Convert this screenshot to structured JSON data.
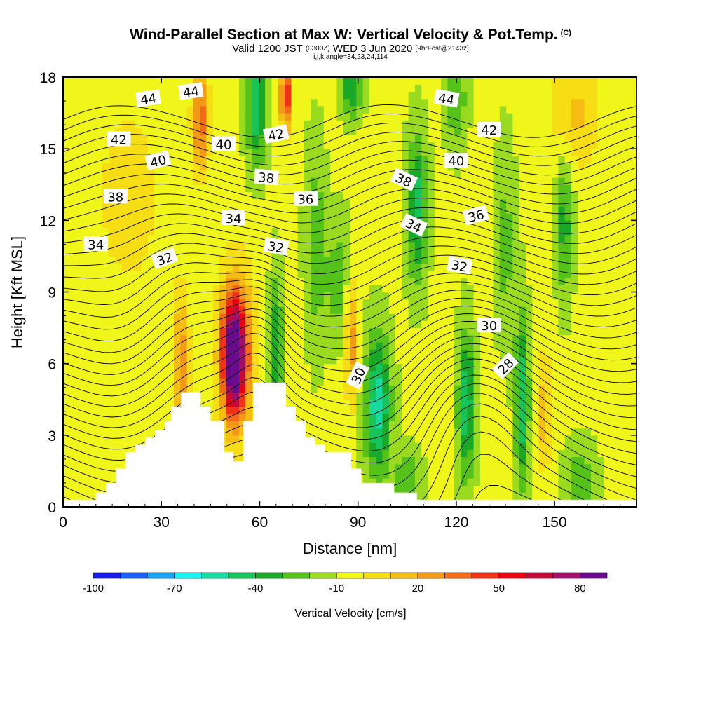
{
  "title": "Wind-Parallel Section at Max W: Vertical Velocity & Pot.Temp.",
  "title_suffix": "(C)",
  "subtitle": {
    "valid": "Valid 1200 JST",
    "utc": "(0300Z)",
    "date": "WED 3 Jun 2020",
    "fcst": "[9hrFcst@2143z]"
  },
  "params": "i,j,k,angle=34,23,24,114",
  "chart_data": {
    "type": "heatmap",
    "xlabel": "Distance [nm]",
    "ylabel": "Height [Kft MSL]",
    "xlim": [
      0,
      175
    ],
    "ylim": [
      0,
      18
    ],
    "xticks": [
      0,
      30,
      60,
      90,
      120,
      150
    ],
    "yticks": [
      0,
      3,
      6,
      9,
      12,
      15,
      18
    ],
    "colorbar": {
      "title": "Vertical Velocity [cm/s]",
      "tick_labels": [
        "-100",
        "-70",
        "-40",
        "-10",
        "20",
        "50",
        "80"
      ],
      "levels_start": -100,
      "levels_step": 10,
      "colors": [
        "#1a1ae6",
        "#1a5ef2",
        "#1aa2f2",
        "#19f0f0",
        "#18d9a0",
        "#17c45c",
        "#1aa828",
        "#55c21a",
        "#9ada1f",
        "#f0f51a",
        "#f7de14",
        "#f5bc14",
        "#f29a18",
        "#f06a18",
        "#f03318",
        "#e60012",
        "#c40a3a",
        "#a0106a",
        "#6a0a8c"
      ]
    },
    "field": {
      "background_w": -8,
      "cells": [
        {
          "x": 52,
          "y": 6.3,
          "sx": 3.2,
          "sy": 2.2,
          "w": 90
        },
        {
          "x": 53,
          "y": 6.5,
          "sx": 5.5,
          "sy": 3.5,
          "w": 45
        },
        {
          "x": 36,
          "y": 6.0,
          "sx": 2.5,
          "sy": 3.0,
          "w": 35
        },
        {
          "x": 68,
          "y": 17.2,
          "sx": 1.8,
          "sy": 1.4,
          "w": 60
        },
        {
          "x": 42,
          "y": 16.2,
          "sx": 2.5,
          "sy": 2.2,
          "w": 45
        },
        {
          "x": 88,
          "y": 7.0,
          "sx": 2.0,
          "sy": 2.6,
          "w": 35
        },
        {
          "x": 147,
          "y": 4.0,
          "sx": 1.6,
          "sy": 2.5,
          "w": 30
        },
        {
          "x": 156,
          "y": 16.5,
          "sx": 8.0,
          "sy": 2.5,
          "w": 20
        },
        {
          "x": 20,
          "y": 13.0,
          "sx": 10.0,
          "sy": 4.0,
          "w": 15
        },
        {
          "x": 96,
          "y": 4.3,
          "sx": 3.8,
          "sy": 2.8,
          "w": -50
        },
        {
          "x": 123,
          "y": 4.3,
          "sx": 2.5,
          "sy": 3.0,
          "w": -42
        },
        {
          "x": 140,
          "y": 4.5,
          "sx": 2.0,
          "sy": 3.5,
          "w": -42
        },
        {
          "x": 108,
          "y": 12.5,
          "sx": 3.0,
          "sy": 3.0,
          "w": -38
        },
        {
          "x": 59,
          "y": 16.8,
          "sx": 3.0,
          "sy": 2.4,
          "w": -40
        },
        {
          "x": 88,
          "y": 17.5,
          "sx": 3.0,
          "sy": 1.2,
          "w": -32
        },
        {
          "x": 65,
          "y": 6.8,
          "sx": 2.0,
          "sy": 3.0,
          "w": -32
        },
        {
          "x": 84,
          "y": 9.5,
          "sx": 4.0,
          "sy": 2.5,
          "w": -18
        },
        {
          "x": 153,
          "y": 12.0,
          "sx": 2.5,
          "sy": 3.0,
          "w": -28
        },
        {
          "x": 120,
          "y": 17.0,
          "sx": 3.0,
          "sy": 2.0,
          "w": -22
        },
        {
          "x": 158,
          "y": 1.0,
          "sx": 4.5,
          "sy": 1.5,
          "w": -22
        },
        {
          "x": 77,
          "y": 11.0,
          "sx": 3.0,
          "sy": 4.0,
          "w": -20
        },
        {
          "x": 135,
          "y": 11.0,
          "sx": 3.0,
          "sy": 4.0,
          "w": -16
        },
        {
          "x": 105,
          "y": 1.2,
          "sx": 4.0,
          "sy": 1.2,
          "w": -20
        }
      ]
    },
    "terrain": [
      [
        0,
        0.3
      ],
      [
        10,
        0.3
      ],
      [
        10,
        0.6
      ],
      [
        13,
        0.6
      ],
      [
        13,
        1.0
      ],
      [
        16,
        1.0
      ],
      [
        16,
        1.6
      ],
      [
        19,
        1.6
      ],
      [
        19,
        2.3
      ],
      [
        22,
        2.3
      ],
      [
        22,
        2.6
      ],
      [
        25,
        2.6
      ],
      [
        25,
        2.9
      ],
      [
        28,
        2.9
      ],
      [
        28,
        3.2
      ],
      [
        31,
        3.2
      ],
      [
        31,
        3.6
      ],
      [
        33,
        3.6
      ],
      [
        33,
        4.2
      ],
      [
        36,
        4.2
      ],
      [
        36,
        4.8
      ],
      [
        42,
        4.8
      ],
      [
        42,
        4.2
      ],
      [
        45,
        4.2
      ],
      [
        45,
        3.6
      ],
      [
        49,
        3.6
      ],
      [
        49,
        2.3
      ],
      [
        52,
        2.3
      ],
      [
        52,
        1.9
      ],
      [
        55,
        1.9
      ],
      [
        55,
        3.6
      ],
      [
        58,
        3.6
      ],
      [
        58,
        5.2
      ],
      [
        68,
        5.2
      ],
      [
        68,
        4.2
      ],
      [
        71,
        4.2
      ],
      [
        71,
        3.6
      ],
      [
        74,
        3.6
      ],
      [
        74,
        2.9
      ],
      [
        77,
        2.9
      ],
      [
        77,
        2.6
      ],
      [
        80,
        2.6
      ],
      [
        80,
        2.3
      ],
      [
        88,
        2.3
      ],
      [
        88,
        1.6
      ],
      [
        91,
        1.6
      ],
      [
        91,
        1.0
      ],
      [
        101,
        1.0
      ],
      [
        101,
        0.6
      ],
      [
        108,
        0.6
      ],
      [
        108,
        0.3
      ],
      [
        175,
        0.3
      ]
    ],
    "theta_contours": {
      "levels_start": 25.5,
      "levels_step": 0.5,
      "levels_end": 45.5
    },
    "contour_labels": [
      {
        "text": "44",
        "x": 26,
        "y": 17.1,
        "angle": -8
      },
      {
        "text": "44",
        "x": 39,
        "y": 17.4,
        "angle": -8
      },
      {
        "text": "44",
        "x": 117,
        "y": 17.1,
        "angle": 10
      },
      {
        "text": "42",
        "x": 17,
        "y": 15.4,
        "angle": 0
      },
      {
        "text": "42",
        "x": 65,
        "y": 15.6,
        "angle": -12
      },
      {
        "text": "42",
        "x": 130,
        "y": 15.8,
        "angle": 0
      },
      {
        "text": "40",
        "x": 29,
        "y": 14.5,
        "angle": -14
      },
      {
        "text": "40",
        "x": 49,
        "y": 15.2,
        "angle": 0
      },
      {
        "text": "40",
        "x": 120,
        "y": 14.5,
        "angle": 0
      },
      {
        "text": "38",
        "x": 16,
        "y": 13.0,
        "angle": 0
      },
      {
        "text": "38",
        "x": 62,
        "y": 13.8,
        "angle": 5
      },
      {
        "text": "38",
        "x": 104,
        "y": 13.7,
        "angle": 25
      },
      {
        "text": "36",
        "x": 74,
        "y": 12.9,
        "angle": 0
      },
      {
        "text": "36",
        "x": 126,
        "y": 12.2,
        "angle": -15
      },
      {
        "text": "34",
        "x": 10,
        "y": 11.0,
        "angle": 0
      },
      {
        "text": "34",
        "x": 52,
        "y": 12.1,
        "angle": 0
      },
      {
        "text": "34",
        "x": 107,
        "y": 11.8,
        "angle": 25
      },
      {
        "text": "32",
        "x": 31,
        "y": 10.4,
        "angle": -20
      },
      {
        "text": "32",
        "x": 65,
        "y": 10.9,
        "angle": 10
      },
      {
        "text": "32",
        "x": 121,
        "y": 10.1,
        "angle": 10
      },
      {
        "text": "30",
        "x": 90,
        "y": 5.5,
        "angle": -65
      },
      {
        "text": "30",
        "x": 130,
        "y": 7.6,
        "angle": 0
      },
      {
        "text": "28",
        "x": 135,
        "y": 5.9,
        "angle": -45
      }
    ]
  }
}
